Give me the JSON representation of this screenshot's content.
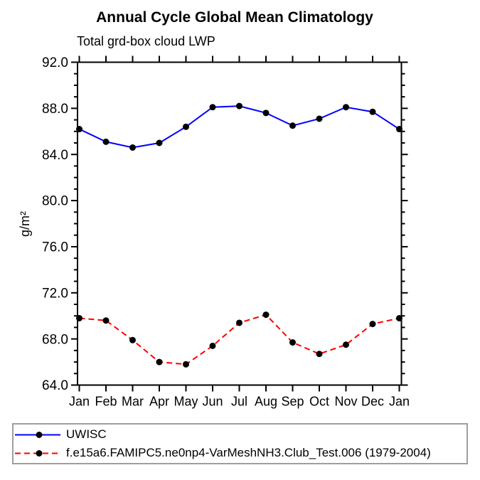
{
  "chart_data": {
    "type": "line",
    "title": "Annual Cycle Global Mean Climatology",
    "subtitle": "Total grd-box cloud LWP",
    "ylabel": "g/m²",
    "xlabel": "",
    "categories": [
      "Jan",
      "Feb",
      "Mar",
      "Apr",
      "May",
      "Jun",
      "Jul",
      "Aug",
      "Sep",
      "Oct",
      "Nov",
      "Dec",
      "Jan"
    ],
    "ylim": [
      64.0,
      92.0
    ],
    "ytick_step": 4.0,
    "yminor_step": 1.0,
    "ytick_labels": [
      "64.0",
      "68.0",
      "72.0",
      "76.0",
      "80.0",
      "84.0",
      "88.0",
      "92.0"
    ],
    "grid": false,
    "legend_position": "bottom-left",
    "axis_color": "#000000",
    "marker": "filled-circle",
    "marker_color": "#000000",
    "series": [
      {
        "name": "UWISC",
        "color": "#0000ff",
        "line_style": "solid",
        "values": [
          86.2,
          85.1,
          84.6,
          85.0,
          86.4,
          88.1,
          88.2,
          87.6,
          86.5,
          87.1,
          88.1,
          87.7,
          86.2
        ]
      },
      {
        "name": "f.e15a6.FAMIPC5.ne0np4-VarMeshNH3.Club_Test.006 (1979-2004)",
        "color": "#ff0000",
        "line_style": "dashed",
        "values": [
          69.8,
          69.6,
          67.9,
          66.0,
          65.8,
          67.4,
          69.4,
          70.1,
          67.7,
          66.7,
          67.5,
          69.3,
          69.8
        ]
      }
    ]
  }
}
